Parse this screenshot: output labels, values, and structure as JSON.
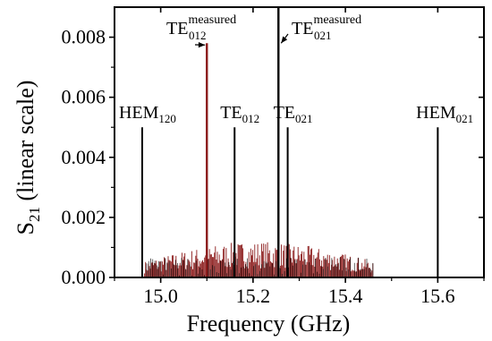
{
  "chart_data": {
    "type": "line",
    "title": "",
    "xlabel": "Frequency (GHz)",
    "ylabel_main": "S",
    "ylabel_sub": "21",
    "ylabel_rest": " (linear scale)",
    "xlim": [
      14.9,
      15.7
    ],
    "ylim": [
      0.0,
      0.009
    ],
    "x_ticks": [
      15.0,
      15.2,
      15.4,
      15.6
    ],
    "x_tick_labels": [
      "15.0",
      "15.2",
      "15.4",
      "15.6"
    ],
    "y_ticks": [
      0.0,
      0.002,
      0.004,
      0.006,
      0.008
    ],
    "y_tick_labels": [
      "0.000",
      "0.002",
      "0.004",
      "0.006",
      "0.008"
    ],
    "grid": false,
    "legend": "none",
    "colors": {
      "measured": "#8b1a1a",
      "predicted": "#000000",
      "axis": "#000000"
    },
    "measured_spectrum": {
      "name": "",
      "x_range": [
        14.965,
        15.46
      ],
      "noise_floor_max": 0.0012,
      "peaks": [
        {
          "label": "TE012 measured",
          "x": 15.1,
          "y": 0.0078
        },
        {
          "label": "TE021 measured",
          "x": 15.255,
          "y": 0.009
        }
      ]
    },
    "predicted_lines": [
      {
        "mode": "HEM",
        "subscript": "120",
        "x": 14.96,
        "y": 0.005
      },
      {
        "mode": "TE",
        "subscript": "012",
        "x": 15.16,
        "y": 0.005
      },
      {
        "mode": "TE",
        "subscript": "021",
        "x": 15.275,
        "y": 0.005
      },
      {
        "mode": "HEM",
        "subscript": "021",
        "x": 15.6,
        "y": 0.005
      }
    ],
    "measured_annotations": [
      {
        "mode": "TE",
        "subscript": "012",
        "superscript": "measured",
        "target_x": 15.1,
        "target_y": 0.0078
      },
      {
        "mode": "TE",
        "subscript": "021",
        "superscript": "measured",
        "target_x": 15.255,
        "target_y": 0.0078
      }
    ]
  }
}
